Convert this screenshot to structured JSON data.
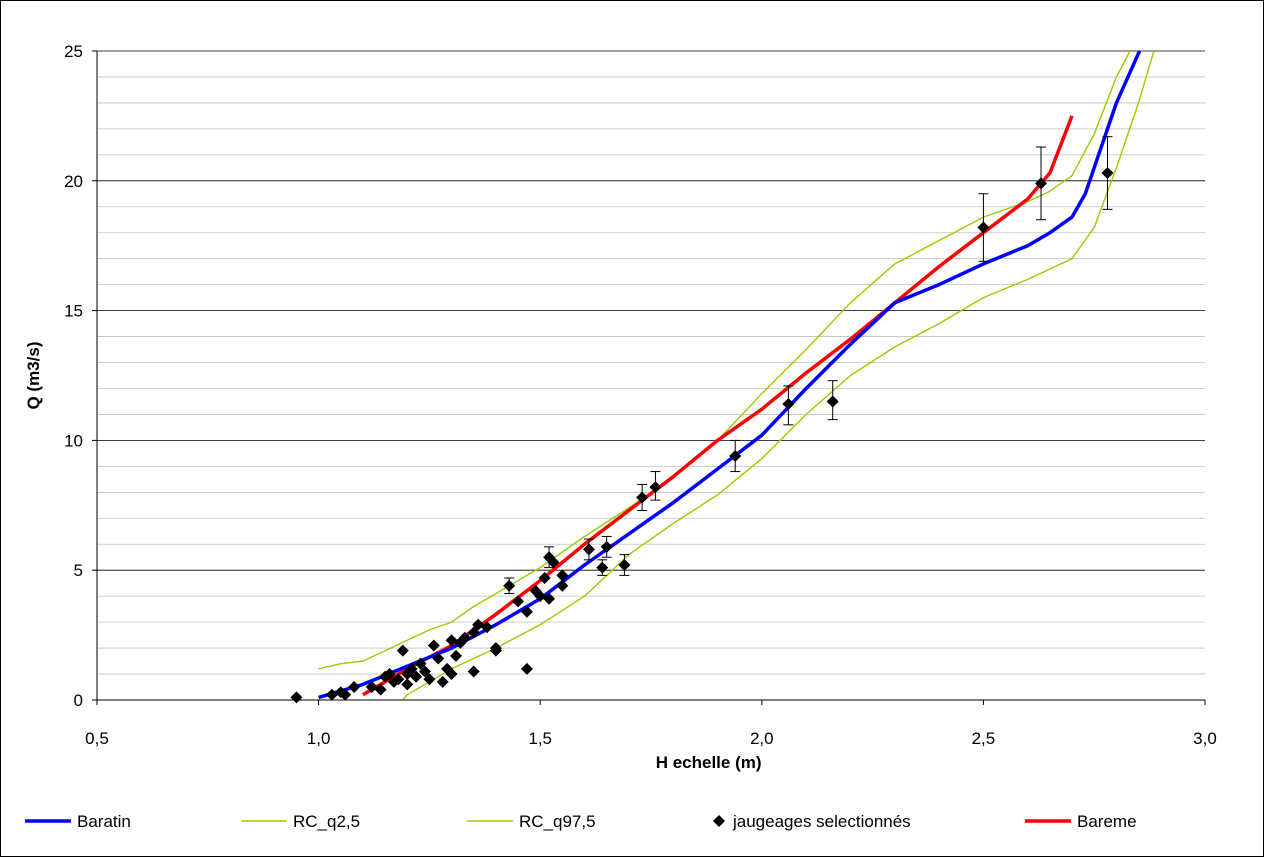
{
  "chart_data": {
    "type": "line",
    "xlabel": "H echelle (m)",
    "ylabel": "Q (m3/s)",
    "xlim": [
      0.5,
      3.0
    ],
    "ylim": [
      0,
      25
    ],
    "x_ticks": [
      "0,5",
      "1,0",
      "1,5",
      "2,0",
      "2,5",
      "3,0"
    ],
    "x_tick_values": [
      0.5,
      1.0,
      1.5,
      2.0,
      2.5,
      3.0
    ],
    "y_ticks": [
      "0",
      "5",
      "10",
      "15",
      "20",
      "25"
    ],
    "y_tick_values": [
      0,
      5,
      10,
      15,
      20,
      25
    ],
    "grid": "horizontal major and minor lines",
    "legend_position": "bottom",
    "series": [
      {
        "name": "Baratin",
        "type": "line",
        "color": "#0000ff",
        "points": [
          [
            1.0,
            0.1
          ],
          [
            1.1,
            0.6
          ],
          [
            1.2,
            1.3
          ],
          [
            1.3,
            2.0
          ],
          [
            1.4,
            2.9
          ],
          [
            1.5,
            3.9
          ],
          [
            1.6,
            5.2
          ],
          [
            1.7,
            6.4
          ],
          [
            1.8,
            7.6
          ],
          [
            1.9,
            8.9
          ],
          [
            2.0,
            10.2
          ],
          [
            2.1,
            12.0
          ],
          [
            2.2,
            13.7
          ],
          [
            2.3,
            15.3
          ],
          [
            2.4,
            16.0
          ],
          [
            2.5,
            16.8
          ],
          [
            2.6,
            17.5
          ],
          [
            2.65,
            18.0
          ],
          [
            2.7,
            18.6
          ],
          [
            2.73,
            19.5
          ],
          [
            2.76,
            21.0
          ],
          [
            2.8,
            23.0
          ],
          [
            2.86,
            25.3
          ]
        ]
      },
      {
        "name": "RC_q2,5",
        "type": "line",
        "color": "#99cc00",
        "points": [
          [
            1.0,
            1.2
          ],
          [
            1.05,
            1.4
          ],
          [
            1.1,
            1.5
          ],
          [
            1.15,
            1.9
          ],
          [
            1.2,
            2.3
          ],
          [
            1.25,
            2.7
          ],
          [
            1.3,
            3.0
          ],
          [
            1.35,
            3.6
          ],
          [
            1.4,
            4.1
          ],
          [
            1.5,
            5.1
          ],
          [
            1.6,
            6.3
          ],
          [
            1.7,
            7.4
          ],
          [
            1.8,
            8.6
          ],
          [
            1.9,
            10.0
          ],
          [
            2.0,
            11.8
          ],
          [
            2.1,
            13.5
          ],
          [
            2.2,
            15.3
          ],
          [
            2.3,
            16.8
          ],
          [
            2.4,
            17.7
          ],
          [
            2.5,
            18.6
          ],
          [
            2.6,
            19.2
          ],
          [
            2.65,
            19.6
          ],
          [
            2.7,
            20.2
          ],
          [
            2.75,
            21.8
          ],
          [
            2.8,
            24.0
          ],
          [
            2.84,
            25.3
          ]
        ]
      },
      {
        "name": "RC_q97,5",
        "type": "line",
        "color": "#99cc00",
        "points": [
          [
            1.18,
            -0.2
          ],
          [
            1.2,
            0.2
          ],
          [
            1.3,
            1.2
          ],
          [
            1.4,
            2.0
          ],
          [
            1.5,
            2.9
          ],
          [
            1.6,
            4.0
          ],
          [
            1.7,
            5.6
          ],
          [
            1.8,
            6.8
          ],
          [
            1.9,
            7.9
          ],
          [
            2.0,
            9.3
          ],
          [
            2.1,
            11.0
          ],
          [
            2.2,
            12.5
          ],
          [
            2.3,
            13.6
          ],
          [
            2.4,
            14.5
          ],
          [
            2.5,
            15.5
          ],
          [
            2.6,
            16.2
          ],
          [
            2.7,
            17.0
          ],
          [
            2.75,
            18.2
          ],
          [
            2.8,
            20.5
          ],
          [
            2.85,
            23.0
          ],
          [
            2.89,
            25.3
          ]
        ]
      },
      {
        "name": "Bareme",
        "type": "line",
        "color": "#ff0000",
        "points": [
          [
            1.1,
            0.2
          ],
          [
            1.2,
            1.2
          ],
          [
            1.3,
            2.1
          ],
          [
            1.4,
            3.3
          ],
          [
            1.5,
            4.6
          ],
          [
            1.6,
            6.0
          ],
          [
            1.7,
            7.3
          ],
          [
            1.8,
            8.6
          ],
          [
            1.9,
            10.0
          ],
          [
            2.0,
            11.2
          ],
          [
            2.1,
            12.6
          ],
          [
            2.2,
            13.9
          ],
          [
            2.3,
            15.3
          ],
          [
            2.4,
            16.7
          ],
          [
            2.5,
            18.0
          ],
          [
            2.6,
            19.3
          ],
          [
            2.65,
            20.3
          ],
          [
            2.7,
            22.5
          ]
        ]
      },
      {
        "name": "jaugeages selectionnés",
        "type": "scatter",
        "color": "#000000",
        "marker": "diamond",
        "points": [
          {
            "x": 0.95,
            "y": 0.1
          },
          {
            "x": 1.03,
            "y": 0.2
          },
          {
            "x": 1.05,
            "y": 0.3
          },
          {
            "x": 1.06,
            "y": 0.2
          },
          {
            "x": 1.08,
            "y": 0.5
          },
          {
            "x": 1.12,
            "y": 0.5
          },
          {
            "x": 1.14,
            "y": 0.4
          },
          {
            "x": 1.15,
            "y": 0.9
          },
          {
            "x": 1.16,
            "y": 1.0
          },
          {
            "x": 1.17,
            "y": 0.7
          },
          {
            "x": 1.18,
            "y": 0.8
          },
          {
            "x": 1.19,
            "y": 1.9
          },
          {
            "x": 1.2,
            "y": 1.0
          },
          {
            "x": 1.2,
            "y": 0.6
          },
          {
            "x": 1.21,
            "y": 1.2
          },
          {
            "x": 1.22,
            "y": 0.9
          },
          {
            "x": 1.23,
            "y": 1.4
          },
          {
            "x": 1.24,
            "y": 1.1
          },
          {
            "x": 1.25,
            "y": 0.8
          },
          {
            "x": 1.26,
            "y": 2.1
          },
          {
            "x": 1.27,
            "y": 1.6
          },
          {
            "x": 1.28,
            "y": 0.7
          },
          {
            "x": 1.29,
            "y": 1.2
          },
          {
            "x": 1.3,
            "y": 2.3
          },
          {
            "x": 1.3,
            "y": 1.0
          },
          {
            "x": 1.31,
            "y": 1.7
          },
          {
            "x": 1.32,
            "y": 2.2
          },
          {
            "x": 1.33,
            "y": 2.4
          },
          {
            "x": 1.35,
            "y": 1.1
          },
          {
            "x": 1.35,
            "y": 2.6
          },
          {
            "x": 1.36,
            "y": 2.9
          },
          {
            "x": 1.38,
            "y": 2.8
          },
          {
            "x": 1.4,
            "y": 1.9
          },
          {
            "x": 1.4,
            "y": 2.0
          },
          {
            "x": 1.43,
            "y": 4.4
          },
          {
            "x": 1.45,
            "y": 3.8
          },
          {
            "x": 1.47,
            "y": 3.4
          },
          {
            "x": 1.47,
            "y": 1.2
          },
          {
            "x": 1.49,
            "y": 4.2
          },
          {
            "x": 1.5,
            "y": 4.0
          },
          {
            "x": 1.51,
            "y": 4.7
          },
          {
            "x": 1.52,
            "y": 3.9
          },
          {
            "x": 1.52,
            "y": 5.5
          },
          {
            "x": 1.53,
            "y": 5.3
          },
          {
            "x": 1.55,
            "y": 4.4
          },
          {
            "x": 1.55,
            "y": 4.8
          },
          {
            "x": 1.61,
            "y": 5.8
          },
          {
            "x": 1.64,
            "y": 5.1
          },
          {
            "x": 1.65,
            "y": 5.9
          },
          {
            "x": 1.69,
            "y": 5.2
          },
          {
            "x": 1.73,
            "y": 7.8
          },
          {
            "x": 1.76,
            "y": 8.2
          },
          {
            "x": 1.94,
            "y": 9.4
          },
          {
            "x": 2.06,
            "y": 11.4
          },
          {
            "x": 2.16,
            "y": 11.5
          },
          {
            "x": 2.5,
            "y": 18.2
          },
          {
            "x": 2.63,
            "y": 19.9
          },
          {
            "x": 2.78,
            "y": 20.3
          }
        ],
        "error_bars": [
          {
            "x": 1.43,
            "low": 4.1,
            "high": 4.7
          },
          {
            "x": 1.52,
            "low": 5.1,
            "high": 5.9
          },
          {
            "x": 1.61,
            "low": 5.4,
            "high": 6.2
          },
          {
            "x": 1.64,
            "low": 4.8,
            "high": 5.4
          },
          {
            "x": 1.65,
            "low": 5.5,
            "high": 6.3
          },
          {
            "x": 1.69,
            "low": 4.8,
            "high": 5.6
          },
          {
            "x": 1.73,
            "low": 7.3,
            "high": 8.3
          },
          {
            "x": 1.76,
            "low": 7.7,
            "high": 8.8
          },
          {
            "x": 1.94,
            "low": 8.8,
            "high": 10.0
          },
          {
            "x": 2.06,
            "low": 10.6,
            "high": 12.1
          },
          {
            "x": 2.16,
            "low": 10.8,
            "high": 12.3
          },
          {
            "x": 2.5,
            "low": 16.9,
            "high": 19.5
          },
          {
            "x": 2.63,
            "low": 18.5,
            "high": 21.3
          },
          {
            "x": 2.78,
            "low": 18.9,
            "high": 21.7
          }
        ]
      }
    ],
    "legend": [
      {
        "label": "Baratin",
        "color": "#0000ff",
        "kind": "thick-line"
      },
      {
        "label": "RC_q2,5",
        "color": "#99cc00",
        "kind": "thin-line"
      },
      {
        "label": "RC_q97,5",
        "color": "#99cc00",
        "kind": "thin-line"
      },
      {
        "label": "jaugeages selectionnés",
        "color": "#000000",
        "kind": "diamond"
      },
      {
        "label": "Bareme",
        "color": "#ff0000",
        "kind": "thick-line"
      }
    ]
  }
}
